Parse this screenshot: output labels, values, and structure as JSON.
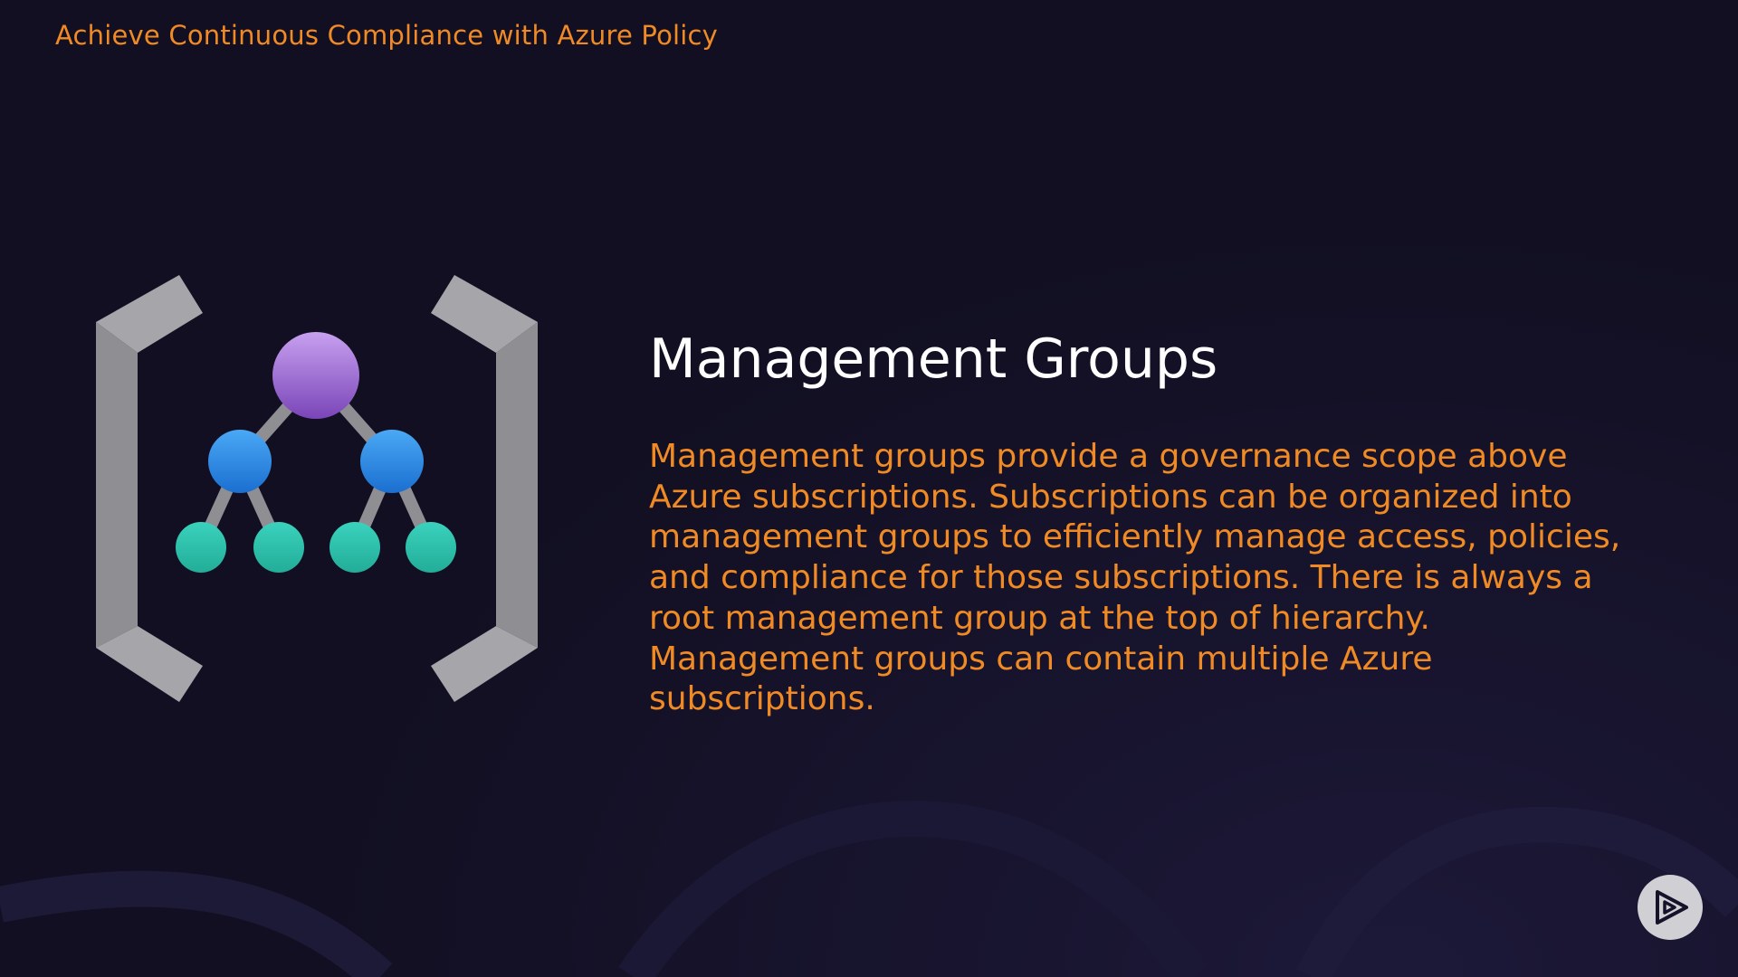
{
  "header": {
    "course_title": "Achieve Continuous Compliance with Azure Policy"
  },
  "slide": {
    "heading": "Management Groups",
    "body": "Management groups provide a governance scope above Azure subscriptions. Subscriptions can be organized into management groups to efficiently manage access, policies, and compliance for those subscriptions. There is always a root management group at the top of hierarchy. Management groups can contain multiple Azure subscriptions."
  },
  "icons": {
    "illustration": "management-groups-icon",
    "player": "play-logo-icon"
  },
  "colors": {
    "background": "#120f22",
    "accent": "#f08a24",
    "heading": "#ffffff",
    "bracket": "#9a9a9e",
    "root_node": "#9a5fd0",
    "mid_node": "#2b8de6",
    "leaf_node": "#2ec4ad"
  }
}
